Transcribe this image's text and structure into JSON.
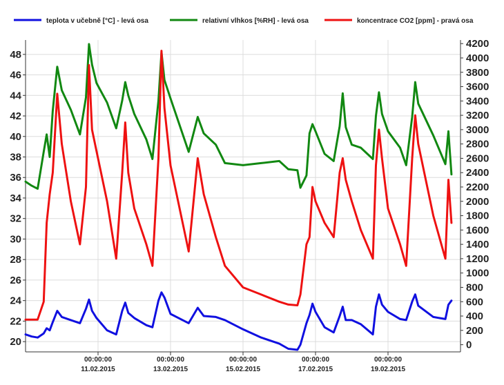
{
  "chart_data": {
    "type": "line",
    "legend_position": "top",
    "grid": true,
    "colors": {
      "temperature": "#1010e0",
      "humidity": "#118811",
      "co2": "#ee1111",
      "grid": "#dcdcdc",
      "axis": "#333333"
    },
    "x_axis": {
      "range": [
        "2015-02-09T00:00",
        "2015-02-21T00:00"
      ],
      "ticks": [
        {
          "t": "2015-02-11T00:00",
          "time": "00:00:00",
          "date": "11.02.2015"
        },
        {
          "t": "2015-02-13T00:00",
          "time": "00:00:00",
          "date": "13.02.2015"
        },
        {
          "t": "2015-02-15T00:00",
          "time": "00:00:00",
          "date": "15.02.2015"
        },
        {
          "t": "2015-02-17T00:00",
          "time": "00:00:00",
          "date": "17.02.2015"
        },
        {
          "t": "2015-02-19T00:00",
          "time": "00:00:00",
          "date": "19.02.2015"
        }
      ]
    },
    "y_left": {
      "range": [
        19,
        49.4
      ],
      "ticks": [
        20,
        22,
        24,
        26,
        28,
        30,
        32,
        34,
        36,
        38,
        40,
        42,
        44,
        46,
        48
      ]
    },
    "y_right": {
      "range": [
        -100,
        4250
      ],
      "ticks": [
        0,
        200,
        400,
        600,
        800,
        1000,
        1200,
        1400,
        1600,
        1800,
        2000,
        2200,
        2400,
        2600,
        2800,
        3000,
        3200,
        3400,
        3600,
        3800,
        4000,
        4200
      ]
    },
    "series": [
      {
        "key": "temperature",
        "name": "teplota v učebně [°C] - levá osa",
        "axis": "left",
        "points": [
          [
            "2015-02-09T00:00",
            20.7
          ],
          [
            "2015-02-09T04:00",
            20.5
          ],
          [
            "2015-02-09T08:00",
            20.4
          ],
          [
            "2015-02-09T12:00",
            20.8
          ],
          [
            "2015-02-09T14:00",
            21.3
          ],
          [
            "2015-02-09T16:00",
            21.1
          ],
          [
            "2015-02-09T18:00",
            21.9
          ],
          [
            "2015-02-09T21:00",
            23.0
          ],
          [
            "2015-02-10T00:00",
            22.4
          ],
          [
            "2015-02-10T06:00",
            22.1
          ],
          [
            "2015-02-10T12:00",
            21.8
          ],
          [
            "2015-02-10T16:00",
            23.2
          ],
          [
            "2015-02-10T18:00",
            24.1
          ],
          [
            "2015-02-10T20:00",
            23.0
          ],
          [
            "2015-02-10T23:00",
            22.3
          ],
          [
            "2015-02-11T06:00",
            21.1
          ],
          [
            "2015-02-11T12:00",
            20.7
          ],
          [
            "2015-02-11T16:00",
            23.0
          ],
          [
            "2015-02-11T18:00",
            23.8
          ],
          [
            "2015-02-11T20:00",
            22.8
          ],
          [
            "2015-02-12T00:00",
            22.3
          ],
          [
            "2015-02-12T08:00",
            21.6
          ],
          [
            "2015-02-12T12:00",
            21.4
          ],
          [
            "2015-02-12T16:00",
            24.0
          ],
          [
            "2015-02-12T18:00",
            24.8
          ],
          [
            "2015-02-12T20:00",
            24.3
          ],
          [
            "2015-02-13T00:00",
            22.7
          ],
          [
            "2015-02-13T12:00",
            21.8
          ],
          [
            "2015-02-13T18:00",
            23.3
          ],
          [
            "2015-02-13T22:00",
            22.5
          ],
          [
            "2015-02-14T06:00",
            22.4
          ],
          [
            "2015-02-14T12:00",
            22.1
          ],
          [
            "2015-02-15T00:00",
            21.2
          ],
          [
            "2015-02-15T12:00",
            20.4
          ],
          [
            "2015-02-16T00:00",
            19.8
          ],
          [
            "2015-02-16T06:00",
            19.3
          ],
          [
            "2015-02-16T12:00",
            19.2
          ],
          [
            "2015-02-16T14:00",
            19.7
          ],
          [
            "2015-02-16T18:00",
            21.8
          ],
          [
            "2015-02-16T20:00",
            22.6
          ],
          [
            "2015-02-16T22:00",
            23.7
          ],
          [
            "2015-02-17T00:00",
            22.9
          ],
          [
            "2015-02-17T06:00",
            21.4
          ],
          [
            "2015-02-17T12:00",
            20.9
          ],
          [
            "2015-02-17T16:00",
            22.5
          ],
          [
            "2015-02-17T18:00",
            23.4
          ],
          [
            "2015-02-17T20:00",
            22.1
          ],
          [
            "2015-02-18T00:00",
            22.1
          ],
          [
            "2015-02-18T06:00",
            21.7
          ],
          [
            "2015-02-18T14:00",
            20.7
          ],
          [
            "2015-02-18T16:00",
            23.4
          ],
          [
            "2015-02-18T18:00",
            24.6
          ],
          [
            "2015-02-18T20:00",
            23.6
          ],
          [
            "2015-02-19T00:00",
            22.9
          ],
          [
            "2015-02-19T08:00",
            22.2
          ],
          [
            "2015-02-19T12:00",
            22.1
          ],
          [
            "2015-02-19T16:00",
            23.9
          ],
          [
            "2015-02-19T18:00",
            24.6
          ],
          [
            "2015-02-19T20:00",
            23.5
          ],
          [
            "2015-02-20T06:00",
            22.4
          ],
          [
            "2015-02-20T14:00",
            22.2
          ],
          [
            "2015-02-20T16:00",
            23.6
          ],
          [
            "2015-02-20T18:00",
            24.0
          ]
        ]
      },
      {
        "key": "humidity",
        "name": "relativní vlhkos [%RH] - levá osa",
        "axis": "left",
        "points": [
          [
            "2015-02-09T00:00",
            35.6
          ],
          [
            "2015-02-09T04:00",
            35.2
          ],
          [
            "2015-02-09T08:00",
            34.9
          ],
          [
            "2015-02-09T12:00",
            38.5
          ],
          [
            "2015-02-09T14:00",
            40.2
          ],
          [
            "2015-02-09T16:00",
            38.0
          ],
          [
            "2015-02-09T18:00",
            42.5
          ],
          [
            "2015-02-09T21:00",
            46.8
          ],
          [
            "2015-02-10T00:00",
            44.5
          ],
          [
            "2015-02-10T06:00",
            42.6
          ],
          [
            "2015-02-10T12:00",
            40.2
          ],
          [
            "2015-02-10T16:00",
            43.8
          ],
          [
            "2015-02-10T18:00",
            49.0
          ],
          [
            "2015-02-10T20:00",
            47.0
          ],
          [
            "2015-02-10T23:00",
            45.2
          ],
          [
            "2015-02-11T06:00",
            43.3
          ],
          [
            "2015-02-11T12:00",
            40.8
          ],
          [
            "2015-02-11T16:00",
            43.5
          ],
          [
            "2015-02-11T18:00",
            45.3
          ],
          [
            "2015-02-11T20:00",
            44.0
          ],
          [
            "2015-02-12T00:00",
            42.2
          ],
          [
            "2015-02-12T08:00",
            39.7
          ],
          [
            "2015-02-12T12:00",
            37.8
          ],
          [
            "2015-02-12T16:00",
            43.5
          ],
          [
            "2015-02-12T18:00",
            48.2
          ],
          [
            "2015-02-12T20:00",
            45.5
          ],
          [
            "2015-02-13T00:00",
            43.7
          ],
          [
            "2015-02-13T12:00",
            38.5
          ],
          [
            "2015-02-13T18:00",
            41.9
          ],
          [
            "2015-02-13T22:00",
            40.3
          ],
          [
            "2015-02-14T06:00",
            39.2
          ],
          [
            "2015-02-14T12:00",
            37.4
          ],
          [
            "2015-02-15T00:00",
            37.2
          ],
          [
            "2015-02-15T12:00",
            37.4
          ],
          [
            "2015-02-16T00:00",
            37.6
          ],
          [
            "2015-02-16T06:00",
            36.8
          ],
          [
            "2015-02-16T12:00",
            36.7
          ],
          [
            "2015-02-16T14:00",
            35.0
          ],
          [
            "2015-02-16T18:00",
            36.2
          ],
          [
            "2015-02-16T20:00",
            40.3
          ],
          [
            "2015-02-16T22:00",
            41.2
          ],
          [
            "2015-02-17T00:00",
            40.5
          ],
          [
            "2015-02-17T06:00",
            38.3
          ],
          [
            "2015-02-17T12:00",
            37.6
          ],
          [
            "2015-02-17T16:00",
            41.0
          ],
          [
            "2015-02-17T18:00",
            44.2
          ],
          [
            "2015-02-17T20:00",
            40.9
          ],
          [
            "2015-02-18T00:00",
            39.2
          ],
          [
            "2015-02-18T06:00",
            38.9
          ],
          [
            "2015-02-18T14:00",
            37.8
          ],
          [
            "2015-02-18T16:00",
            42.0
          ],
          [
            "2015-02-18T18:00",
            44.3
          ],
          [
            "2015-02-18T20:00",
            42.2
          ],
          [
            "2015-02-19T00:00",
            40.5
          ],
          [
            "2015-02-19T08:00",
            38.9
          ],
          [
            "2015-02-19T12:00",
            37.2
          ],
          [
            "2015-02-19T16:00",
            41.9
          ],
          [
            "2015-02-19T18:00",
            45.3
          ],
          [
            "2015-02-19T20:00",
            43.2
          ],
          [
            "2015-02-20T06:00",
            40.1
          ],
          [
            "2015-02-20T14:00",
            37.3
          ],
          [
            "2015-02-20T16:00",
            40.5
          ],
          [
            "2015-02-20T18:00",
            36.3
          ]
        ]
      },
      {
        "key": "co2",
        "name": "koncentrace CO2 [ppm] - pravá osa",
        "axis": "right",
        "points": [
          [
            "2015-02-09T00:00",
            350
          ],
          [
            "2015-02-09T04:00",
            350
          ],
          [
            "2015-02-09T08:00",
            350
          ],
          [
            "2015-02-09T12:00",
            600
          ],
          [
            "2015-02-09T14:00",
            1700
          ],
          [
            "2015-02-09T16:00",
            2100
          ],
          [
            "2015-02-09T18:00",
            2400
          ],
          [
            "2015-02-09T21:00",
            3500
          ],
          [
            "2015-02-10T00:00",
            2800
          ],
          [
            "2015-02-10T06:00",
            2000
          ],
          [
            "2015-02-10T12:00",
            1400
          ],
          [
            "2015-02-10T16:00",
            2200
          ],
          [
            "2015-02-10T18:00",
            3900
          ],
          [
            "2015-02-10T20:00",
            3000
          ],
          [
            "2015-02-10T23:00",
            2700
          ],
          [
            "2015-02-11T06:00",
            2000
          ],
          [
            "2015-02-11T12:00",
            1200
          ],
          [
            "2015-02-11T16:00",
            2400
          ],
          [
            "2015-02-11T18:00",
            3100
          ],
          [
            "2015-02-11T20:00",
            2400
          ],
          [
            "2015-02-12T00:00",
            1900
          ],
          [
            "2015-02-12T08:00",
            1400
          ],
          [
            "2015-02-12T12:00",
            1100
          ],
          [
            "2015-02-12T16:00",
            2600
          ],
          [
            "2015-02-12T18:00",
            4100
          ],
          [
            "2015-02-12T20:00",
            3300
          ],
          [
            "2015-02-13T00:00",
            2500
          ],
          [
            "2015-02-13T12:00",
            1300
          ],
          [
            "2015-02-13T18:00",
            2600
          ],
          [
            "2015-02-13T22:00",
            2100
          ],
          [
            "2015-02-14T06:00",
            1500
          ],
          [
            "2015-02-14T12:00",
            1100
          ],
          [
            "2015-02-15T00:00",
            800
          ],
          [
            "2015-02-15T12:00",
            700
          ],
          [
            "2015-02-16T00:00",
            600
          ],
          [
            "2015-02-16T06:00",
            560
          ],
          [
            "2015-02-16T12:00",
            550
          ],
          [
            "2015-02-16T14:00",
            700
          ],
          [
            "2015-02-16T18:00",
            1400
          ],
          [
            "2015-02-16T20:00",
            1500
          ],
          [
            "2015-02-16T22:00",
            2200
          ],
          [
            "2015-02-17T00:00",
            2000
          ],
          [
            "2015-02-17T06:00",
            1700
          ],
          [
            "2015-02-17T12:00",
            1500
          ],
          [
            "2015-02-17T16:00",
            2400
          ],
          [
            "2015-02-17T18:00",
            2600
          ],
          [
            "2015-02-17T20:00",
            2300
          ],
          [
            "2015-02-18T00:00",
            2000
          ],
          [
            "2015-02-18T06:00",
            1600
          ],
          [
            "2015-02-18T14:00",
            1200
          ],
          [
            "2015-02-18T16:00",
            2500
          ],
          [
            "2015-02-18T18:00",
            3000
          ],
          [
            "2015-02-18T20:00",
            2600
          ],
          [
            "2015-02-19T00:00",
            1900
          ],
          [
            "2015-02-19T08:00",
            1400
          ],
          [
            "2015-02-19T12:00",
            1100
          ],
          [
            "2015-02-19T16:00",
            2600
          ],
          [
            "2015-02-19T18:00",
            3200
          ],
          [
            "2015-02-19T20:00",
            2800
          ],
          [
            "2015-02-20T06:00",
            1800
          ],
          [
            "2015-02-20T14:00",
            1200
          ],
          [
            "2015-02-20T16:00",
            2300
          ],
          [
            "2015-02-20T18:00",
            1700
          ]
        ]
      }
    ]
  }
}
